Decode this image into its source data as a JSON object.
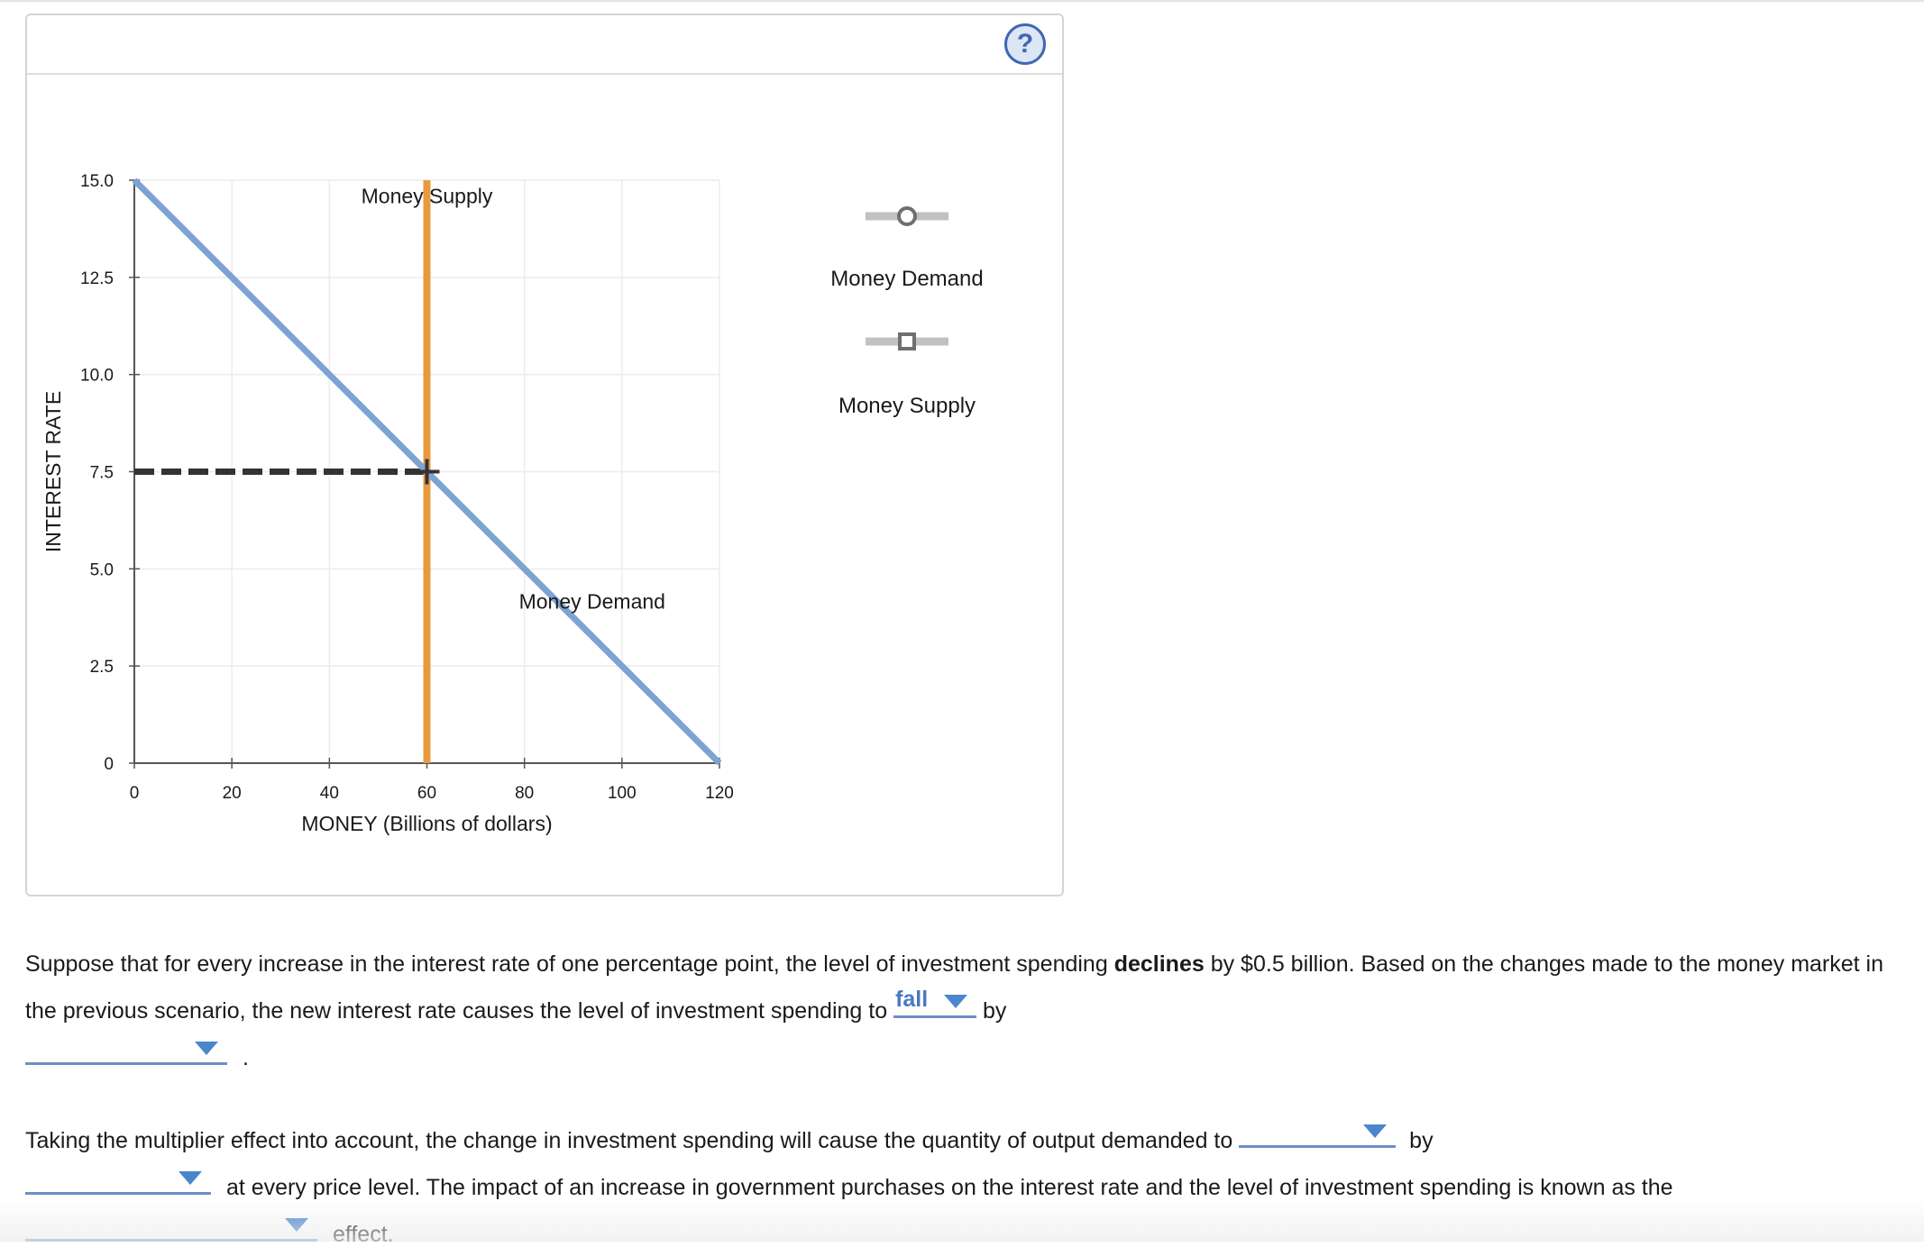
{
  "help": {
    "icon": "help-circle-icon",
    "label": "?"
  },
  "chart_data": {
    "type": "line",
    "xlabel": "MONEY (Billions of dollars)",
    "ylabel": "INTEREST RATE",
    "xlim": [
      0,
      120
    ],
    "ylim": [
      0,
      15
    ],
    "x_ticks": [
      "0",
      "20",
      "40",
      "60",
      "80",
      "100",
      "120"
    ],
    "y_ticks": [
      "0",
      "2.5",
      "5.0",
      "7.5",
      "10.0",
      "12.5",
      "15.0"
    ],
    "grid": true,
    "series": [
      {
        "name": "Money Demand",
        "color": "#7ea3d2",
        "points": [
          [
            0,
            15
          ],
          [
            120,
            0
          ]
        ],
        "label_at": [
          95,
          3.75
        ]
      },
      {
        "name": "Money Supply",
        "color": "#e99a3c",
        "points": [
          [
            60,
            0
          ],
          [
            60,
            15
          ]
        ],
        "label_at": [
          60,
          14.5
        ]
      }
    ],
    "equilibrium": {
      "x": 60,
      "y": 7.5
    }
  },
  "legend": {
    "items": [
      {
        "name": "Money Demand",
        "marker": "circle"
      },
      {
        "name": "Money Supply",
        "marker": "square"
      }
    ]
  },
  "question1": {
    "text_a": "Suppose that for every increase in the interest rate of one percentage point, the level of investment spending ",
    "text_bold": "declines",
    "text_b": " by $0.5 billion. Based on the changes made to the money market in the previous scenario, the new interest rate causes the level of investment spending to ",
    "dropdown1_value": "fall",
    "text_c": " by",
    "dropdown2_value": "",
    "text_d": "."
  },
  "question2": {
    "text_a": "Taking the multiplier effect into account, the change in investment spending will cause the quantity of output demanded to ",
    "dropdown1_value": "",
    "text_b": " by",
    "dropdown2_value": "",
    "text_c": " at every price level. The impact of an increase in government purchases on the interest rate and the level of investment spending is known as the ",
    "dropdown3_value": "",
    "text_d": " effect."
  }
}
